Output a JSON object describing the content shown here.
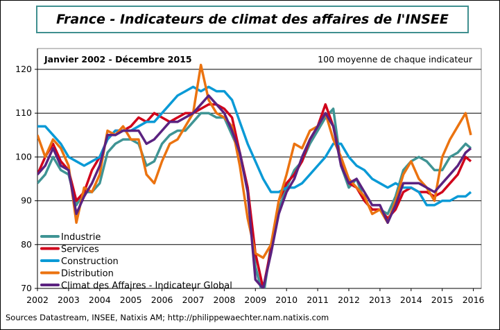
{
  "chart_data": {
    "type": "line",
    "title": "France - Indicateurs de climat des affaires de l'INSEE",
    "subtitle": "Janvier 2002 - Décembre 2015",
    "note": "100 moyenne de chaque indicateur",
    "source": "Sources Datastream, INSEE, Natixis AM; http://philippewaechter.nam.natixis.com",
    "xlim": [
      2002,
      2016
    ],
    "ylim": [
      70,
      120
    ],
    "x_ticks": [
      "2002",
      "2003",
      "2004",
      "2005",
      "2006",
      "2007",
      "2008",
      "2009",
      "2010",
      "2011",
      "2012",
      "2013",
      "2014",
      "2015",
      "2016"
    ],
    "y_ticks": [
      "70",
      "80",
      "90",
      "100",
      "110",
      "120"
    ],
    "grid": "horizontal",
    "legend": "bottom-left",
    "x": [
      2002.0,
      2002.25,
      2002.5,
      2002.75,
      2003.0,
      2003.25,
      2003.5,
      2003.75,
      2004.0,
      2004.25,
      2004.5,
      2004.75,
      2005.0,
      2005.25,
      2005.5,
      2005.75,
      2006.0,
      2006.25,
      2006.5,
      2006.75,
      2007.0,
      2007.25,
      2007.5,
      2007.75,
      2008.0,
      2008.25,
      2008.5,
      2008.75,
      2009.0,
      2009.25,
      2009.5,
      2009.75,
      2010.0,
      2010.25,
      2010.5,
      2010.75,
      2011.0,
      2011.25,
      2011.5,
      2011.75,
      2012.0,
      2012.25,
      2012.5,
      2012.75,
      2013.0,
      2013.25,
      2013.5,
      2013.75,
      2014.0,
      2014.25,
      2014.5,
      2014.75,
      2015.0,
      2015.25,
      2015.5,
      2015.75,
      2015.92
    ],
    "series": [
      {
        "name": "Industrie",
        "color": "#3f9494",
        "values": [
          94,
          96,
          100,
          97,
          96,
          89,
          92,
          92,
          94,
          101,
          103,
          104,
          104,
          103,
          98,
          99,
          103,
          105,
          106,
          106,
          108,
          110,
          110,
          109,
          109,
          105,
          101,
          93,
          75,
          68,
          80,
          88,
          93,
          97,
          99,
          103,
          106,
          109,
          111,
          98,
          93,
          95,
          90,
          88,
          88,
          87,
          91,
          97,
          99,
          100,
          99,
          97,
          97,
          100,
          101,
          103,
          102
        ]
      },
      {
        "name": "Services",
        "color": "#d0021b",
        "values": [
          96,
          100,
          103,
          99,
          97,
          90,
          92,
          97,
          100,
          104,
          106,
          106,
          107,
          109,
          108,
          110,
          109,
          108,
          109,
          110,
          110,
          111,
          112,
          112,
          111,
          109,
          101,
          93,
          78,
          70,
          79,
          90,
          94,
          96,
          99,
          104,
          107,
          112,
          107,
          99,
          94,
          93,
          90,
          88,
          88,
          86,
          88,
          92,
          93,
          92,
          92,
          91,
          92,
          94,
          96,
          100,
          99
        ]
      },
      {
        "name": "Construction",
        "color": "#0a9ad6",
        "values": [
          107,
          107,
          105,
          103,
          100,
          99,
          98,
          99,
          100,
          104,
          106,
          106,
          106,
          107,
          108,
          108,
          110,
          112,
          114,
          115,
          116,
          115,
          116,
          115,
          115,
          113,
          108,
          103,
          99,
          95,
          92,
          92,
          93,
          93,
          94,
          96,
          98,
          100,
          103,
          103,
          100,
          98,
          97,
          95,
          94,
          93,
          94,
          93,
          93,
          92,
          89,
          89,
          90,
          90,
          91,
          91,
          92
        ]
      },
      {
        "name": "Distribution",
        "color": "#eb7310",
        "values": [
          105,
          100,
          104,
          102,
          98,
          85,
          93,
          92,
          96,
          106,
          105,
          107,
          104,
          104,
          96,
          94,
          99,
          103,
          104,
          107,
          110,
          121,
          113,
          110,
          109,
          107,
          98,
          86,
          78,
          77,
          80,
          90,
          96,
          103,
          102,
          106,
          107,
          110,
          104,
          100,
          95,
          93,
          91,
          87,
          88,
          85,
          90,
          96,
          99,
          95,
          93,
          90,
          100,
          104,
          107,
          110,
          105
        ]
      },
      {
        "name": "Climat des Affaires - Indicateur Global",
        "color": "#5b2280",
        "values": [
          96,
          98,
          102,
          98,
          97,
          87,
          91,
          94,
          98,
          105,
          105,
          106,
          106,
          106,
          103,
          104,
          106,
          108,
          108,
          109,
          110,
          112,
          114,
          112,
          110,
          106,
          101,
          92,
          72,
          70,
          78,
          87,
          92,
          95,
          100,
          104,
          107,
          110,
          107,
          98,
          94,
          95,
          92,
          89,
          89,
          85,
          89,
          94,
          94,
          94,
          93,
          92,
          94,
          96,
          98,
          101,
          102
        ]
      }
    ]
  }
}
